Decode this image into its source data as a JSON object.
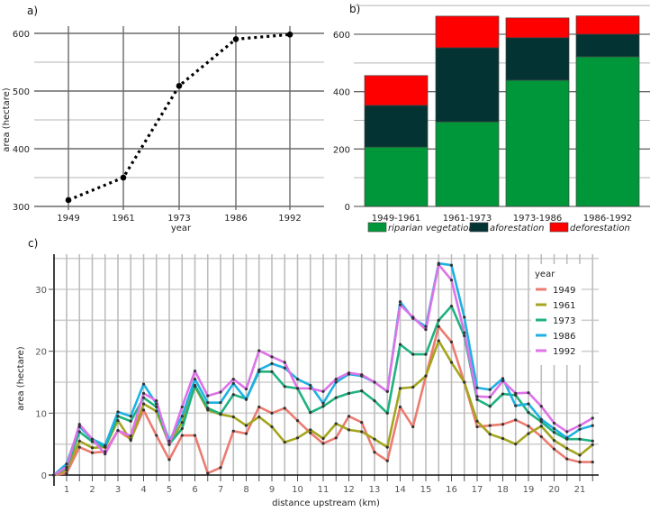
{
  "chart_data": [
    {
      "panel": "a)",
      "type": "line",
      "title": "",
      "xlabel": "year",
      "ylabel": "area (hectare)",
      "categories": [
        "1949",
        "1961",
        "1973",
        "1986",
        "1992"
      ],
      "values": [
        311,
        350,
        509,
        590,
        598
      ],
      "ylim": [
        300,
        600
      ],
      "yticks": [
        "300",
        "400",
        "500",
        "600"
      ],
      "line_style": "dotted",
      "line_color": "#000000",
      "grid": true
    },
    {
      "panel": "b)",
      "type": "bar",
      "stacked": true,
      "title": "",
      "xlabel": "",
      "ylabel": "",
      "categories": [
        "1949-1961",
        "1961-1973",
        "1973-1986",
        "1986-1992"
      ],
      "series": [
        {
          "name": "riparian vegetation",
          "color": "#00963a",
          "values": [
            207,
            295,
            440,
            522
          ]
        },
        {
          "name": "aforestation",
          "color": "#033333",
          "values": [
            145,
            258,
            148,
            78
          ]
        },
        {
          "name": "deforestation",
          "color": "#ff0000",
          "values": [
            104,
            110,
            69,
            64
          ]
        }
      ],
      "ylim": [
        0,
        600
      ],
      "yticks": [
        "0",
        "200",
        "400",
        "600"
      ],
      "legend_position": "bottom",
      "grid": true
    },
    {
      "panel": "c)",
      "type": "line",
      "title": "",
      "xlabel": "distance upstream (km)",
      "ylabel": "area (hectare)",
      "x": [
        0.5,
        1,
        1.5,
        2,
        2.5,
        3,
        3.5,
        4,
        4.5,
        5,
        5.5,
        6,
        6.5,
        7,
        7.5,
        8,
        8.5,
        9,
        9.5,
        10,
        10.5,
        11,
        11.5,
        12,
        12.5,
        13,
        13.5,
        14,
        14.5,
        15,
        15.5,
        16,
        16.5,
        17,
        17.5,
        18,
        18.5,
        19,
        19.5,
        20,
        20.5,
        21,
        21.5
      ],
      "xticks": [
        "1",
        "2",
        "3",
        "4",
        "5",
        "6",
        "7",
        "8",
        "9",
        "10",
        "11",
        "12",
        "13",
        "14",
        "15",
        "16",
        "17",
        "18",
        "19",
        "20",
        "21"
      ],
      "yticks": [
        "0",
        "10",
        "20",
        "30"
      ],
      "ylim": [
        0,
        35
      ],
      "legend_title": "year",
      "legend_position": "top-right",
      "grid": true,
      "series": [
        {
          "name": "1949",
          "color": "#ec7b70",
          "values": [
            0,
            0.3,
            4.5,
            3.6,
            3.8,
            7.2,
            5.8,
            10.5,
            6.4,
            2.5,
            6.4,
            6.4,
            0.3,
            1.2,
            7.1,
            6.7,
            11,
            10,
            10.8,
            8.8,
            6.8,
            5.1,
            6,
            9.5,
            8.5,
            3.7,
            2.3,
            11,
            7.8,
            16,
            24,
            21.5,
            15,
            7.8,
            8,
            8.2,
            8.9,
            7.9,
            6.2,
            4.2,
            2.6,
            2.1,
            2.1
          ]
        },
        {
          "name": "1961",
          "color": "#a4a51d",
          "values": [
            0,
            0.8,
            5.5,
            4.4,
            4.5,
            8.8,
            5.6,
            11.5,
            10.3,
            5,
            8.5,
            14.3,
            10.5,
            9.8,
            9.4,
            8,
            9.4,
            7.8,
            5.3,
            6,
            7.3,
            5.9,
            8.3,
            7.3,
            7,
            5.8,
            4.5,
            14,
            14.2,
            16,
            21.7,
            18.2,
            15,
            8.7,
            6.6,
            5.9,
            5,
            6.7,
            7.9,
            5.6,
            4.3,
            3.2,
            4.9
          ]
        },
        {
          "name": "1973",
          "color": "#1fb27f",
          "values": [
            0,
            1.2,
            7,
            5.4,
            4.5,
            9.5,
            8.7,
            12.5,
            11,
            5,
            7.5,
            14.5,
            10.8,
            9.9,
            13,
            12.3,
            16.7,
            16.7,
            14.3,
            14,
            10.1,
            11.1,
            12.5,
            13.2,
            13.6,
            12,
            10,
            21.1,
            19.5,
            19.5,
            25,
            27.3,
            22.5,
            12.2,
            11.1,
            13.1,
            12.9,
            10.1,
            8.6,
            6.9,
            5.8,
            5.8,
            5.5
          ]
        },
        {
          "name": "1986",
          "color": "#1fb1e3",
          "values": [
            0,
            1.8,
            7.8,
            5.8,
            4.8,
            10.2,
            9.5,
            14.7,
            11.5,
            5.5,
            9.5,
            15.5,
            11.7,
            11.7,
            14.8,
            12.2,
            17,
            18,
            17.3,
            15.5,
            14.5,
            11.6,
            15,
            16.3,
            16,
            15,
            13.5,
            28,
            25.3,
            24,
            34.2,
            33.9,
            25.5,
            14.1,
            13.8,
            15.6,
            11.2,
            11.5,
            9,
            7.5,
            6,
            7.4,
            8
          ]
        },
        {
          "name": "1992",
          "color": "#de72e8",
          "values": [
            0,
            1.3,
            8.2,
            5.8,
            3.4,
            7.2,
            6.3,
            13.2,
            12,
            4.9,
            11,
            16.8,
            12.8,
            13.4,
            15.5,
            13.9,
            20.1,
            19.1,
            18.2,
            14,
            14,
            13.5,
            15.5,
            16.5,
            16.2,
            15,
            13.5,
            27.5,
            25.5,
            23.5,
            34,
            31.5,
            23,
            12.7,
            12.6,
            15.2,
            13.2,
            13.3,
            11.1,
            8.4,
            7,
            8,
            9.2
          ]
        }
      ]
    }
  ]
}
